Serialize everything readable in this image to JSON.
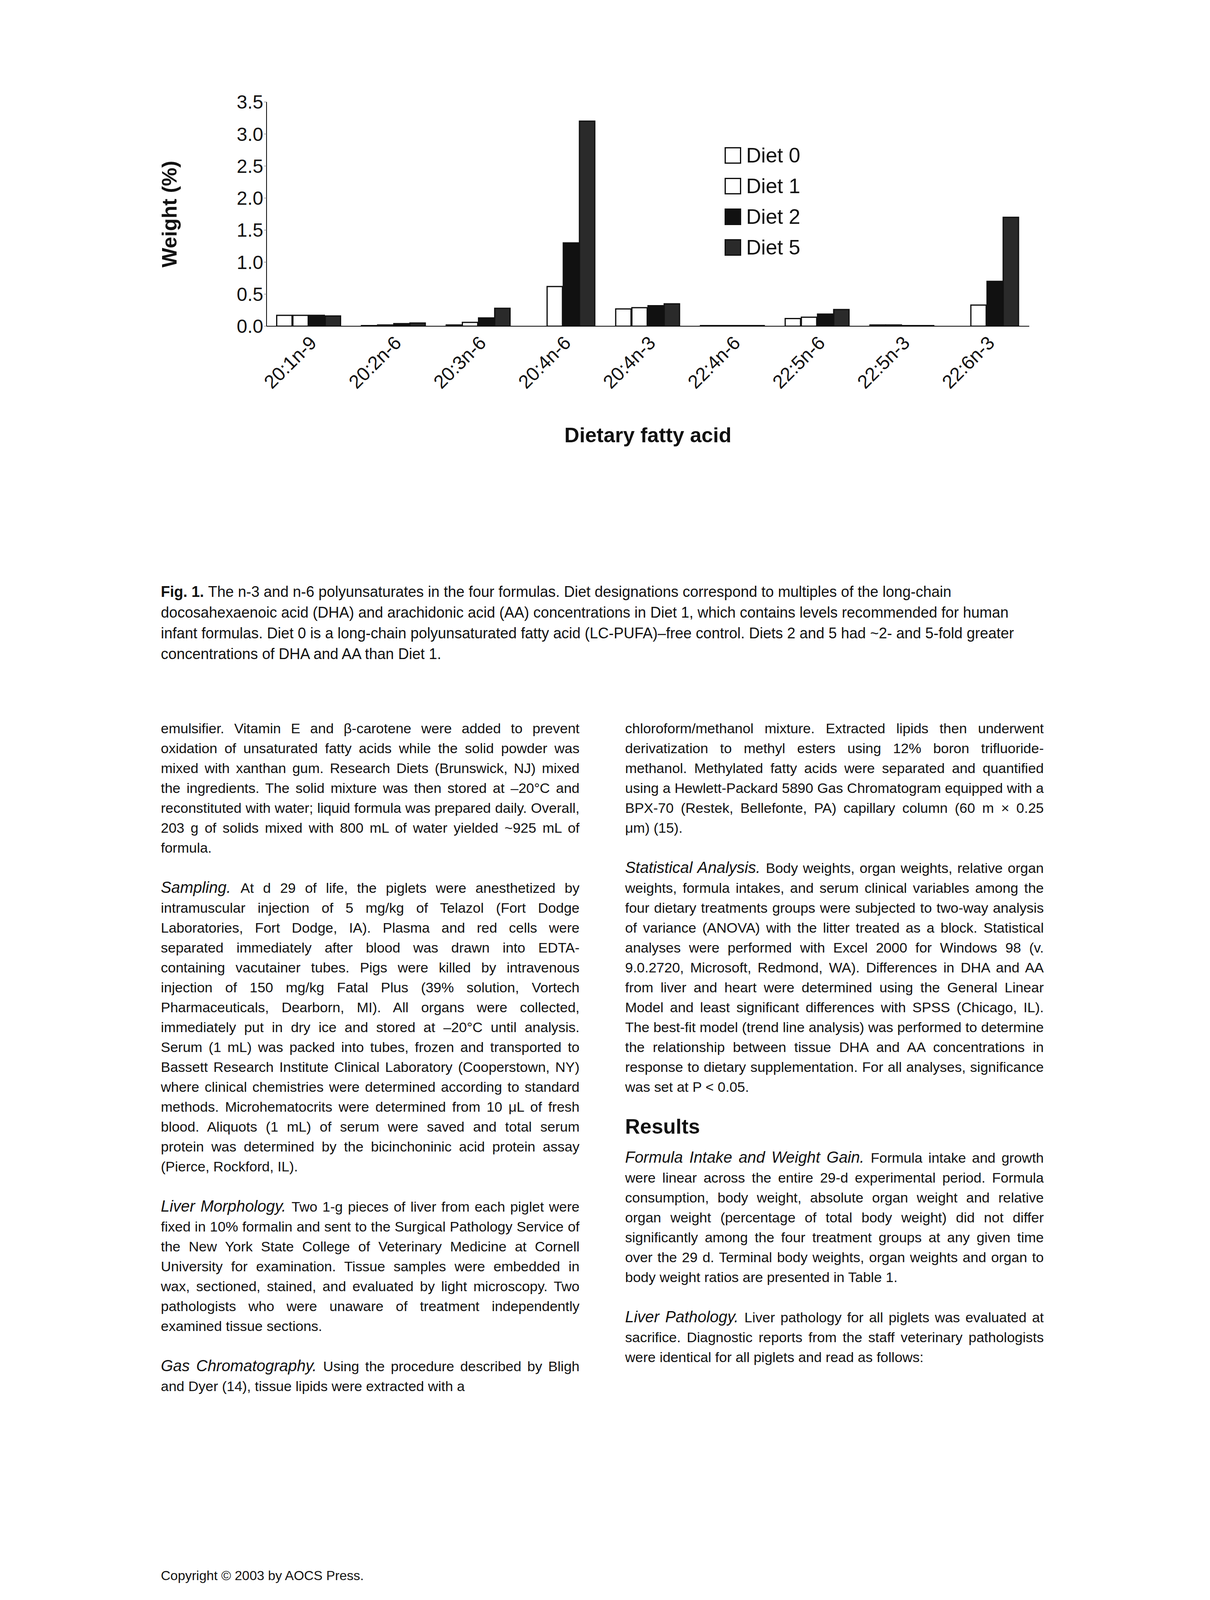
{
  "chart_data": {
    "type": "bar",
    "x_label": "Dietary fatty acid",
    "y_label": "Weight (%)",
    "categories": [
      "20:1n-9",
      "20:2n-6",
      "20:3n-6",
      "20:4n-6",
      "20:4n-3",
      "22:4n-6",
      "22:5n-6",
      "22:5n-3",
      "22:6n-3"
    ],
    "series": [
      {
        "name": "Diet 0",
        "color": "#ffffff",
        "values": [
          0.17,
          0.01,
          0.02,
          0,
          0.27,
          0.01,
          0.12,
          0.02,
          0
        ]
      },
      {
        "name": "Diet 1",
        "color": "#ffffff",
        "values": [
          0.17,
          0.02,
          0.06,
          0.62,
          0.29,
          0.01,
          0.14,
          0.02,
          0.33
        ]
      },
      {
        "name": "Diet 2",
        "color": "#111111",
        "values": [
          0.17,
          0.04,
          0.13,
          1.3,
          0.32,
          0.01,
          0.19,
          0.01,
          0.7
        ]
      },
      {
        "name": "Diet 5",
        "color": "#2a2a2a",
        "values": [
          0.16,
          0.05,
          0.28,
          3.2,
          0.35,
          0.01,
          0.26,
          0.01,
          1.7
        ]
      }
    ],
    "ylim": [
      0,
      3.5
    ],
    "yticks": [
      {
        "value": 0,
        "label": "0.0"
      },
      {
        "value": 0.5,
        "label": "0.5"
      },
      {
        "value": 1,
        "label": "1.0"
      },
      {
        "value": 1.5,
        "label": "1.5"
      },
      {
        "value": 2,
        "label": "2.0"
      },
      {
        "value": 2.5,
        "label": "2.5"
      },
      {
        "value": 3,
        "label": "3.0"
      },
      {
        "value": 3.5,
        "label": "3.5"
      }
    ],
    "grid": false,
    "legend": "upper right"
  },
  "document": {
    "caption": {
      "label": "Fig. 1.",
      "text": "The n-3 and n-6 polyunsaturates in the four formulas. Diet designations correspond to multiples of the long-chain docosahexaenoic acid (DHA) and arachidonic acid (AA) concentrations in Diet 1, which contains levels recommended for human infant formulas. Diet 0 is a long-chain polyunsaturated fatty acid (LC-PUFA)–free control. Diets 2 and 5 had ~2- and 5-fold greater concentrations of DHA and AA than Diet 1."
    },
    "left_column": [
      {
        "text": "emulsifier. Vitamin E and β-carotene were added to prevent oxidation of unsaturated fatty acids while the solid powder was mixed with xanthan gum. Research Diets (Brunswick, NJ) mixed the ingredients. The solid mixture was then stored at –20°C and reconstituted with water; liquid formula was prepared daily. Overall, 203 g of solids mixed with 800 mL of water yielded ~925 mL of formula."
      },
      {
        "run_in": "Sampling.",
        "text": "At d 29 of life, the piglets were anesthetized by intramuscular injection of 5 mg/kg of Telazol (Fort Dodge Laboratories, Fort Dodge, IA). Plasma and red cells were separated immediately after blood was drawn into EDTA-containing vacutainer tubes. Pigs were killed by intravenous injection of 150 mg/kg Fatal Plus (39% solution, Vortech Pharmaceuticals, Dearborn, MI). All organs were collected, immediately put in dry ice and stored at –20°C until analysis. Serum (1 mL) was packed into tubes, frozen and transported to Bassett Research Institute Clinical Laboratory (Cooperstown, NY) where clinical chemistries were determined according to standard methods. Microhematocrits were determined from 10 μL of fresh blood. Aliquots (1 mL) of serum were saved and total serum protein was determined by the bicinchoninic acid protein assay (Pierce, Rockford, IL)."
      },
      {
        "run_in": "Liver Morphology.",
        "text": "Two 1-g pieces of liver from each piglet were fixed in 10% formalin and sent to the Surgical Pathology Service of the New York State College of Veterinary Medicine at Cornell University for examination. Tissue samples were embedded in wax, sectioned, stained, and evaluated by light microscopy. Two pathologists who were unaware of treatment independently examined tissue sections."
      },
      {
        "run_in": "Gas Chromatography.",
        "text": "Using the procedure described by Bligh and Dyer (14), tissue lipids were extracted with a"
      }
    ],
    "right_column": [
      {
        "text": "chloroform/methanol mixture. Extracted lipids then underwent derivatization to methyl esters using 12% boron trifluoride-methanol. Methylated fatty acids were separated and quantified using a Hewlett-Packard 5890 Gas Chromatogram equipped with a BPX-70 (Restek, Bellefonte, PA) capillary column (60 m × 0.25 μm) (15)."
      },
      {
        "run_in": "Statistical Analysis.",
        "text": "Body weights, organ weights, relative organ weights, formula intakes, and serum clinical variables among the four dietary treatments groups were subjected to two-way analysis of variance (ANOVA) with the litter treated as a block. Statistical analyses were performed with Excel 2000 for Windows 98 (v. 9.0.2720, Microsoft, Redmond, WA). Differences in DHA and AA from liver and heart were determined using the General Linear Model and least significant differences with SPSS (Chicago, IL). The best-fit model (trend line analysis) was performed to determine the relationship between tissue DHA and AA concentrations in response to dietary supplementation. For all analyses, significance was set at P < 0.05."
      },
      {
        "heading": "Results"
      },
      {
        "run_in": "Formula Intake and Weight Gain.",
        "text": "Formula intake and growth were linear across the entire 29-d experimental period. Formula consumption, body weight, absolute organ weight and relative organ weight (percentage of total body weight) did not differ significantly among the four treatment groups at any given time over the 29 d. Terminal body weights, organ weights and organ to body weight ratios are presented in Table 1."
      },
      {
        "run_in": "Liver Pathology.",
        "text": "Liver pathology for all piglets was evaluated at sacrifice. Diagnostic reports from the staff veterinary pathologists were identical for all piglets and read as follows:"
      }
    ],
    "footer": "Copyright © 2003 by AOCS Press."
  }
}
